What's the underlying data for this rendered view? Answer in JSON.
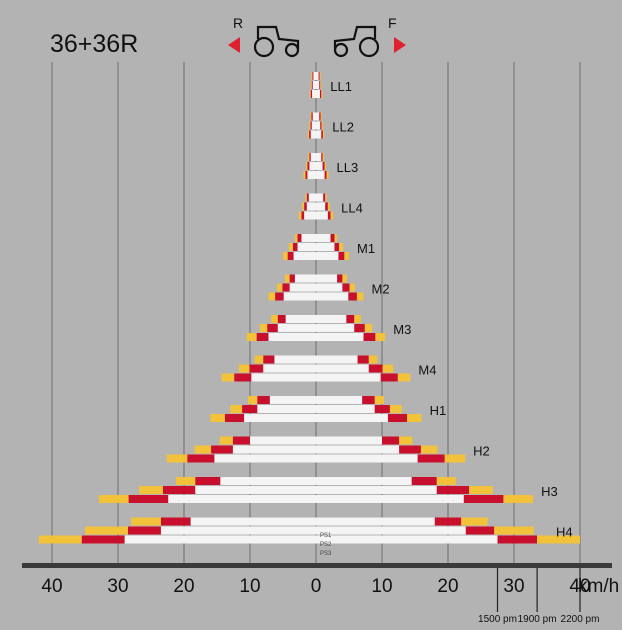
{
  "title": "36+36R",
  "direction": {
    "reverse_label": "R",
    "forward_label": "F"
  },
  "colors": {
    "background": "#b3b3b3",
    "bar_white": "#f4f4f4",
    "bar_red": "#c8102e",
    "bar_yellow": "#f2c23a",
    "arrow_red": "#e0202e"
  },
  "chart_data": {
    "type": "bar",
    "title": "36+36R",
    "xlabel": "km/h",
    "xlim_forward": [
      0,
      40
    ],
    "xlim_reverse": [
      0,
      42
    ],
    "x_ticks": [
      40,
      30,
      20,
      10,
      0,
      10,
      20,
      30,
      40
    ],
    "x_tick_labels": [
      "40",
      "30",
      "20",
      "10",
      "0",
      "10",
      "20",
      "30",
      "40"
    ],
    "grid": true,
    "engine_speeds": [
      "1500 pm",
      "1900 pm",
      "2200 pm"
    ],
    "engine_speed_markers_kmh": [
      27.5,
      33.5,
      40
    ],
    "powershift_labels": [
      "PS1",
      "PS2",
      "PS3"
    ],
    "series": [
      {
        "name": "1500 pm",
        "color": "white"
      },
      {
        "name": "1900 pm",
        "color": "red"
      },
      {
        "name": "2200 pm",
        "color": "yellow"
      }
    ],
    "groups": [
      {
        "name": "LL1",
        "forward": [
          [
            0.4,
            0.55,
            0.7
          ],
          [
            0.5,
            0.65,
            0.8
          ],
          [
            0.6,
            0.8,
            0.95
          ]
        ],
        "reverse": [
          [
            0.4,
            0.55,
            0.7
          ],
          [
            0.5,
            0.65,
            0.8
          ],
          [
            0.6,
            0.8,
            0.95
          ]
        ]
      },
      {
        "name": "LL2",
        "forward": [
          [
            0.5,
            0.7,
            0.85
          ],
          [
            0.65,
            0.85,
            1.05
          ],
          [
            0.8,
            1.05,
            1.25
          ]
        ],
        "reverse": [
          [
            0.5,
            0.7,
            0.85
          ],
          [
            0.65,
            0.85,
            1.05
          ],
          [
            0.8,
            1.05,
            1.25
          ]
        ]
      },
      {
        "name": "LL3",
        "forward": [
          [
            0.8,
            1.0,
            1.2
          ],
          [
            1.0,
            1.3,
            1.5
          ],
          [
            1.3,
            1.6,
            1.9
          ]
        ],
        "reverse": [
          [
            0.8,
            1.0,
            1.2
          ],
          [
            1.0,
            1.3,
            1.5
          ],
          [
            1.3,
            1.6,
            1.9
          ]
        ]
      },
      {
        "name": "LL4",
        "forward": [
          [
            1.1,
            1.4,
            1.6
          ],
          [
            1.4,
            1.8,
            2.1
          ],
          [
            1.8,
            2.2,
            2.6
          ]
        ],
        "reverse": [
          [
            1.1,
            1.4,
            1.6
          ],
          [
            1.4,
            1.8,
            2.1
          ],
          [
            1.8,
            2.2,
            2.6
          ]
        ]
      },
      {
        "name": "M1",
        "forward": [
          [
            2.2,
            2.8,
            3.2
          ],
          [
            2.8,
            3.5,
            4.1
          ],
          [
            3.4,
            4.3,
            5.0
          ]
        ],
        "reverse": [
          [
            2.2,
            2.8,
            3.2
          ],
          [
            2.8,
            3.5,
            4.1
          ],
          [
            3.4,
            4.3,
            5.0
          ]
        ]
      },
      {
        "name": "M2",
        "forward": [
          [
            3.2,
            4.0,
            4.7
          ],
          [
            4.0,
            5.1,
            5.9
          ],
          [
            4.9,
            6.2,
            7.2
          ]
        ],
        "reverse": [
          [
            3.2,
            4.0,
            4.7
          ],
          [
            4.0,
            5.1,
            5.9
          ],
          [
            4.9,
            6.2,
            7.2
          ]
        ]
      },
      {
        "name": "M3",
        "forward": [
          [
            4.6,
            5.8,
            6.8
          ],
          [
            5.8,
            7.4,
            8.5
          ],
          [
            7.2,
            9.0,
            10.5
          ]
        ],
        "reverse": [
          [
            4.6,
            5.8,
            6.8
          ],
          [
            5.8,
            7.4,
            8.5
          ],
          [
            7.2,
            9.0,
            10.5
          ]
        ]
      },
      {
        "name": "M4",
        "forward": [
          [
            6.3,
            8.0,
            9.3
          ],
          [
            8.0,
            10.1,
            11.7
          ],
          [
            9.8,
            12.4,
            14.3
          ]
        ],
        "reverse": [
          [
            6.3,
            8.0,
            9.3
          ],
          [
            8.0,
            10.1,
            11.7
          ],
          [
            9.8,
            12.4,
            14.3
          ]
        ]
      },
      {
        "name": "H1",
        "forward": [
          [
            7.0,
            8.9,
            10.3
          ],
          [
            8.9,
            11.2,
            13.0
          ],
          [
            10.9,
            13.8,
            16.0
          ]
        ],
        "reverse": [
          [
            7.0,
            8.9,
            10.3
          ],
          [
            8.9,
            11.2,
            13.0
          ],
          [
            10.9,
            13.8,
            16.0
          ]
        ]
      },
      {
        "name": "H2",
        "forward": [
          [
            10.0,
            12.6,
            14.6
          ],
          [
            12.6,
            15.9,
            18.4
          ],
          [
            15.4,
            19.5,
            22.6
          ]
        ],
        "reverse": [
          [
            10.0,
            12.6,
            14.6
          ],
          [
            12.6,
            15.9,
            18.4
          ],
          [
            15.4,
            19.5,
            22.6
          ]
        ]
      },
      {
        "name": "H3",
        "forward": [
          [
            14.5,
            18.3,
            21.2
          ],
          [
            18.3,
            23.2,
            26.8
          ],
          [
            22.4,
            28.4,
            32.9
          ]
        ],
        "reverse": [
          [
            14.5,
            18.3,
            21.2
          ],
          [
            18.3,
            23.2,
            26.8
          ],
          [
            22.4,
            28.4,
            32.9
          ]
        ]
      },
      {
        "name": "H4",
        "forward": [
          [
            18.0,
            22.0,
            26.0
          ],
          [
            22.7,
            27.0,
            33.0
          ],
          [
            27.5,
            33.5,
            40.0
          ]
        ],
        "reverse": [
          [
            19.0,
            23.5,
            28.0
          ],
          [
            23.5,
            28.5,
            35.0
          ],
          [
            29.0,
            35.5,
            42.0
          ]
        ]
      }
    ]
  }
}
